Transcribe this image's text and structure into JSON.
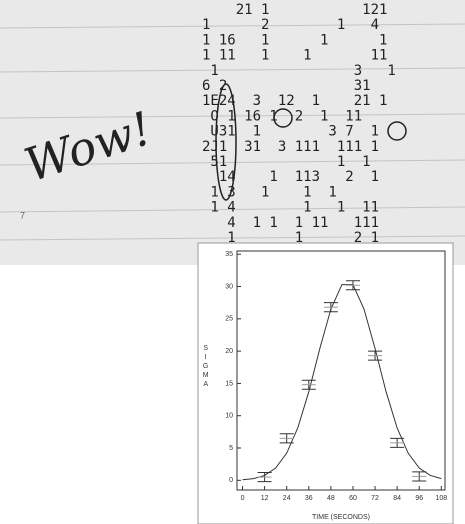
{
  "printout": {
    "annotation": "Wow!",
    "margin_mark": "7",
    "rows": [
      "    21 1           121",
      "1      2        1   4",
      "1 16   1      1      1",
      "1 11   1    1       11",
      " 1                3   1",
      "6 2               31",
      "1E24  3  12  1    21 1",
      " O 1 16 1  2  1  11",
      " U31  1        3 7  1",
      "2J1  31  3 111  111 1",
      " 51             1  1",
      "  14    1  113   2  1",
      " 1 3   1    1  1",
      " 1 4        1   1  11",
      "   4  1 1  1 11   111",
      "   1       1      2 1"
    ]
  },
  "chart_data": {
    "type": "errorbar",
    "x_label": "TIME (SECONDS)",
    "y_label": "SIGMA",
    "points": {
      "x": [
        12,
        24,
        36,
        48,
        60,
        72,
        84,
        96
      ],
      "values": [
        0.5,
        6.5,
        14.8,
        26.8,
        30.2,
        19.3,
        5.8,
        0.6
      ],
      "errors": [
        0.7,
        0.7,
        0.7,
        0.7,
        0.7,
        0.7,
        0.7,
        0.7
      ]
    },
    "fit": {
      "x": [
        0,
        6,
        12,
        18,
        24,
        30,
        36,
        42,
        48,
        54,
        60,
        66,
        72,
        78,
        84,
        90,
        96,
        102,
        108
      ],
      "values": [
        0.08,
        0.26,
        0.75,
        1.9,
        4.2,
        8.1,
        13.7,
        20.4,
        26.5,
        30.3,
        30.3,
        26.5,
        20.4,
        13.7,
        8.1,
        4.2,
        1.9,
        0.75,
        0.26
      ]
    },
    "color": "#333333",
    "xlim": [
      -3,
      110
    ],
    "ylim": [
      -1.5,
      35.5
    ],
    "xticks": [
      0,
      12,
      24,
      36,
      48,
      60,
      72,
      84,
      96,
      108
    ],
    "yticks": [
      0,
      5,
      10,
      15,
      20,
      25,
      30,
      35
    ]
  }
}
